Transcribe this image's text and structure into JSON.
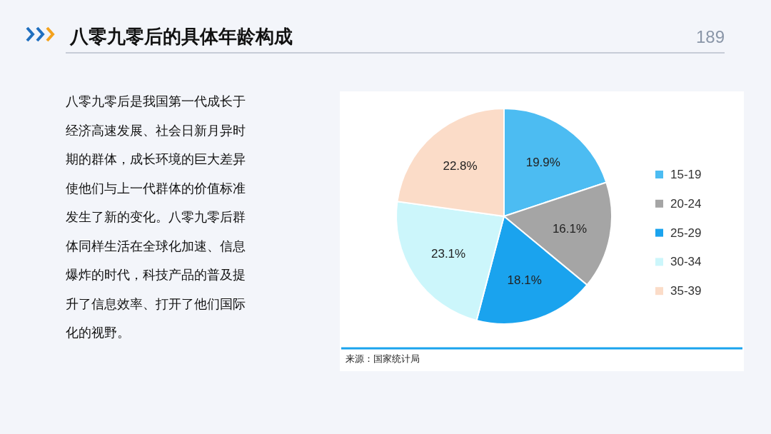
{
  "chart_data": {
    "type": "pie",
    "title": "八零九零后的具体年龄构成",
    "categories": [
      "15-19",
      "20-24",
      "25-29",
      "30-34",
      "35-39"
    ],
    "values": [
      19.9,
      16.1,
      18.1,
      23.1,
      22.8
    ],
    "value_labels": [
      "19.9%",
      "16.1%",
      "18.1%",
      "23.1%",
      "22.8%"
    ],
    "colors": [
      "#4cbcf2",
      "#a5a5a5",
      "#1aa3ee",
      "#ccf6fb",
      "#fbdcc8"
    ],
    "legend": "right",
    "annotations": [
      "189",
      "八零九零后是我国第一代成长于经济高速发展、社会日新月异时期的群体，成长环境的巨大差异使他们与上一代群体的价值标准发生了新的变化。八零九零后群体同样生活在全球化加速、信息爆炸的时代，科技产品的普及提升了信息效率、打开了他们国际化的视野。",
      "来源：国家统计局"
    ]
  }
}
